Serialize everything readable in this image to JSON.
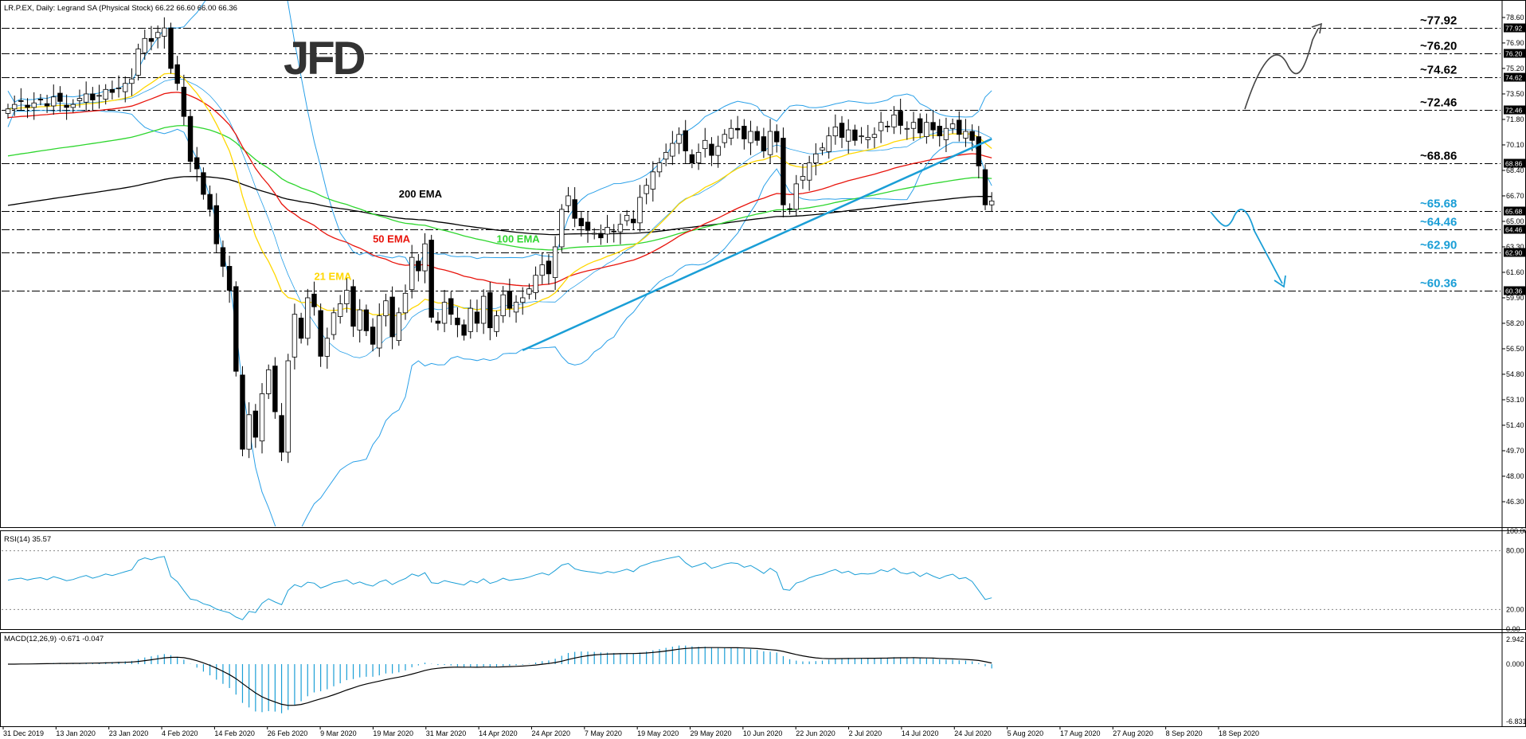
{
  "header": {
    "title": "LR.P.EX, Daily:  Legrand SA (Physical Stock)  66.22 66.60 66.00 66.36"
  },
  "logo": {
    "text": "JFD"
  },
  "colors": {
    "accent": "#1a9ed6",
    "ema21": "#ffd700",
    "ema50": "#e8140c",
    "ema100": "#2ed62e",
    "ema200": "#000000",
    "bollinger": "#2aa0e8",
    "candle_up": "#ffffff",
    "candle_down": "#000000",
    "level_line": "#000000"
  },
  "chart_data": [
    {
      "type": "candlestick",
      "title": "",
      "ylim": [
        44.6,
        79.5
      ],
      "price_ticks": [
        "78.60",
        "76.90",
        "75.20",
        "73.50",
        "71.80",
        "70.10",
        "68.40",
        "66.70",
        "65.00",
        "63.30",
        "61.60",
        "59.90",
        "58.20",
        "56.50",
        "54.80",
        "53.10",
        "51.40",
        "49.70",
        "48.00",
        "46.30"
      ],
      "date_labels": [
        "31 Dec 2019",
        "13 Jan 2020",
        "23 Jan 2020",
        "4 Feb 2020",
        "14 Feb 2020",
        "26 Feb 2020",
        "9 Mar 2020",
        "19 Mar 2020",
        "31 Mar 2020",
        "14 Apr 2020",
        "24 Apr 2020",
        "7 May 2020",
        "19 May 2020",
        "29 May 2020",
        "10 Jun 2020",
        "22 Jun 2020",
        "2 Jul 2020",
        "14 Jul 2020",
        "24 Jul 2020",
        "5 Aug 2020",
        "17 Aug 2020",
        "27 Aug 2020",
        "8 Sep 2020",
        "18 Sep 2020"
      ],
      "closes": [
        72.5,
        72.8,
        73.0,
        72.6,
        72.9,
        73.1,
        72.7,
        73.3,
        73.0,
        72.6,
        72.8,
        73.2,
        73.5,
        73.1,
        73.4,
        73.8,
        73.6,
        73.9,
        74.2,
        74.5,
        76.5,
        77.2,
        77.0,
        77.6,
        77.9,
        75.2,
        74.2,
        72.0,
        69.0,
        68.5,
        66.8,
        65.8,
        63.5,
        62.0,
        60.4,
        55.0,
        49.8,
        52.1,
        50.6,
        53.5,
        55.1,
        52.3,
        49.6,
        55.7,
        58.8,
        57.2,
        59.9,
        59.3,
        56.0,
        57.2,
        58.9,
        59.5,
        60.4,
        58.0,
        59.1,
        57.7,
        56.8,
        58.7,
        59.7,
        57.3,
        58.9,
        60.2,
        62.6,
        61.7,
        63.5,
        58.6,
        58.2,
        59.6,
        58.8,
        58.1,
        57.4,
        59.2,
        58.2,
        60.0,
        57.9,
        58.7,
        60.1,
        59.2,
        59.6,
        59.9,
        60.5,
        61.4,
        62.1,
        61.5,
        63.3,
        65.8,
        66.7,
        65.2,
        64.7,
        64.4,
        64.2,
        63.9,
        64.6,
        64.3,
        64.8,
        65.4,
        64.9,
        66.6,
        67.4,
        68.3,
        68.9,
        69.6,
        70.2,
        70.8,
        69.7,
        68.9,
        69.6,
        70.4,
        69.4,
        70.0,
        70.8,
        71.2,
        71.1,
        70.5,
        71.0,
        70.4,
        69.7,
        71.0,
        70.3,
        66.1,
        65.8,
        67.5,
        68.0,
        68.9,
        69.5,
        69.9,
        70.7,
        71.3,
        70.6,
        71.1,
        70.4,
        70.7,
        70.6,
        70.8,
        71.6,
        71.3,
        72.1,
        71.4,
        71.2,
        71.6,
        70.9,
        71.6,
        71.1,
        70.7,
        71.2,
        71.5,
        70.8,
        71.0,
        70.4,
        68.7,
        66.1,
        66.36
      ],
      "levels": [
        {
          "label": "~77.92",
          "tag": "77.92",
          "value": 77.92,
          "color": "#000000"
        },
        {
          "label": "~76.20",
          "tag": "76.20",
          "value": 76.2,
          "color": "#000000"
        },
        {
          "label": "~74.62",
          "tag": "74.62",
          "value": 74.62,
          "color": "#000000"
        },
        {
          "label": "~72.46",
          "tag": "72.46",
          "value": 72.46,
          "color": "#000000"
        },
        {
          "label": "~68.86",
          "tag": "68.86",
          "value": 68.86,
          "color": "#000000"
        },
        {
          "label": "~65.68",
          "tag": "65.68",
          "value": 65.68,
          "color": "#1a9ed6"
        },
        {
          "label": "~64.46",
          "tag": "64.46",
          "value": 64.46,
          "color": "#1a9ed6"
        },
        {
          "label": "~62.90",
          "tag": "62.90",
          "value": 62.9,
          "color": "#1a9ed6"
        },
        {
          "label": "~60.36",
          "tag": "60.36",
          "value": 60.36,
          "color": "#1a9ed6"
        }
      ],
      "ema_labels": [
        {
          "text": "200 EMA",
          "color": "#000000",
          "bar": 60,
          "value": 66.6
        },
        {
          "text": "50 EMA",
          "color": "#e8140c",
          "bar": 56,
          "value": 63.6
        },
        {
          "text": "100 EMA",
          "color": "#2ed62e",
          "bar": 75,
          "value": 63.6
        },
        {
          "text": "21 EMA",
          "color": "#ffd700",
          "bar": 47,
          "value": 61.1
        }
      ]
    },
    {
      "type": "line",
      "title": "RSI(14) 35.57",
      "ylim": [
        0,
        100
      ],
      "ticks": [
        "100.00",
        "80.00",
        "20.00",
        "0.00"
      ]
    },
    {
      "type": "bar",
      "title": "MACD(12,26,9) -0.671 -0.047",
      "ylim": [
        -6.831,
        2.942
      ],
      "ticks": [
        "2.942",
        "0.000",
        "-6.831"
      ]
    }
  ]
}
